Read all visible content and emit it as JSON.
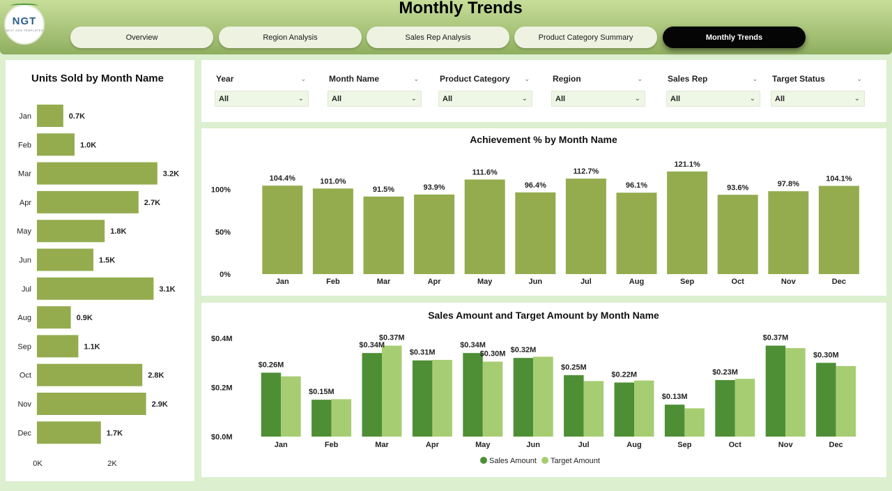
{
  "header": {
    "title": "Monthly Trends",
    "logo_text": "NGT",
    "logo_subtext": "NEXT GEN TEMPLATES",
    "tabs": [
      {
        "label": "Overview",
        "active": false
      },
      {
        "label": "Region Analysis",
        "active": false
      },
      {
        "label": "Sales Rep Analysis",
        "active": false
      },
      {
        "label": "Product Category Summary",
        "active": false
      },
      {
        "label": "Monthly Trends",
        "active": true
      }
    ]
  },
  "filters": [
    {
      "label": "Year",
      "value": "All"
    },
    {
      "label": "Month Name",
      "value": "All"
    },
    {
      "label": "Product Category",
      "value": "All"
    },
    {
      "label": "Region",
      "value": "All"
    },
    {
      "label": "Sales Rep",
      "value": "All"
    },
    {
      "label": "Target Status",
      "value": "All"
    }
  ],
  "icons": {
    "filter_chevron": "chevron-down-icon",
    "dropdown_arrow": "dropdown-arrow-icon"
  },
  "colors": {
    "olive": "#94ac4e",
    "dark_green": "#4e8f36",
    "light_green": "#a7cd72"
  },
  "chart_data": [
    {
      "type": "bar",
      "orientation": "horizontal",
      "title": "Units Sold by Month Name",
      "categories": [
        "Jan",
        "Feb",
        "Mar",
        "Apr",
        "May",
        "Jun",
        "Jul",
        "Aug",
        "Sep",
        "Oct",
        "Nov",
        "Dec"
      ],
      "values": [
        700,
        1000,
        3200,
        2700,
        1800,
        1500,
        3100,
        900,
        1100,
        2800,
        2900,
        1700
      ],
      "labels": [
        "0.7K",
        "1.0K",
        "3.2K",
        "2.7K",
        "1.8K",
        "1.5K",
        "3.1K",
        "0.9K",
        "1.1K",
        "2.8K",
        "2.9K",
        "1.7K"
      ],
      "x_ticks": [
        "0K",
        "2K"
      ],
      "xlim": [
        0,
        4000
      ],
      "color": "#94ac4e"
    },
    {
      "type": "bar",
      "title": "Achievement % by Month Name",
      "categories": [
        "Jan",
        "Feb",
        "Mar",
        "Apr",
        "May",
        "Jun",
        "Jul",
        "Aug",
        "Sep",
        "Oct",
        "Nov",
        "Dec"
      ],
      "values": [
        104.4,
        101.0,
        91.5,
        93.9,
        111.6,
        96.4,
        112.7,
        96.1,
        121.1,
        93.6,
        97.8,
        104.1
      ],
      "labels": [
        "104.4%",
        "101.0%",
        "91.5%",
        "93.9%",
        "111.6%",
        "96.4%",
        "112.7%",
        "96.1%",
        "121.1%",
        "93.6%",
        "97.8%",
        "104.1%"
      ],
      "y_ticks": [
        {
          "value": 0,
          "label": "0%"
        },
        {
          "value": 50,
          "label": "50%"
        },
        {
          "value": 100,
          "label": "100%"
        }
      ],
      "ylim": [
        0,
        135
      ],
      "color": "#94ac4e"
    },
    {
      "type": "bar",
      "title": "Sales Amount and Target Amount by Month Name",
      "categories": [
        "Jan",
        "Feb",
        "Mar",
        "Apr",
        "May",
        "Jun",
        "Jul",
        "Aug",
        "Sep",
        "Oct",
        "Nov",
        "Dec"
      ],
      "series": [
        {
          "name": "Sales Amount",
          "color": "#4e8f36",
          "values": [
            0.26,
            0.15,
            0.34,
            0.31,
            0.34,
            0.32,
            0.25,
            0.22,
            0.13,
            0.23,
            0.37,
            0.3
          ]
        },
        {
          "name": "Target Amount",
          "color": "#a7cd72",
          "values": [
            0.245,
            0.152,
            0.37,
            0.312,
            0.305,
            0.325,
            0.226,
            0.228,
            0.115,
            0.235,
            0.36,
            0.287
          ]
        }
      ],
      "labels": [
        {
          "text": "$0.26M",
          "category": 0
        },
        {
          "text": "$0.15M",
          "category": 1
        },
        {
          "text": "$0.34M",
          "category": 2
        },
        {
          "text": "$0.37M",
          "category": 2,
          "series": 1
        },
        {
          "text": "$0.31M",
          "category": 3
        },
        {
          "text": "$0.34M",
          "category": 4
        },
        {
          "text": "$0.30M",
          "category": 4,
          "series": 1
        },
        {
          "text": "$0.32M",
          "category": 5
        },
        {
          "text": "$0.25M",
          "category": 6
        },
        {
          "text": "$0.22M",
          "category": 7
        },
        {
          "text": "$0.13M",
          "category": 8
        },
        {
          "text": "$0.23M",
          "category": 9
        },
        {
          "text": "$0.37M",
          "category": 10
        },
        {
          "text": "$0.30M",
          "category": 11
        }
      ],
      "y_ticks": [
        {
          "value": 0,
          "label": "$0.0M"
        },
        {
          "value": 0.2,
          "label": "$0.2M"
        },
        {
          "value": 0.4,
          "label": "$0.4M"
        }
      ],
      "ylim": [
        0,
        0.4
      ],
      "legend": "bottom-center"
    }
  ]
}
